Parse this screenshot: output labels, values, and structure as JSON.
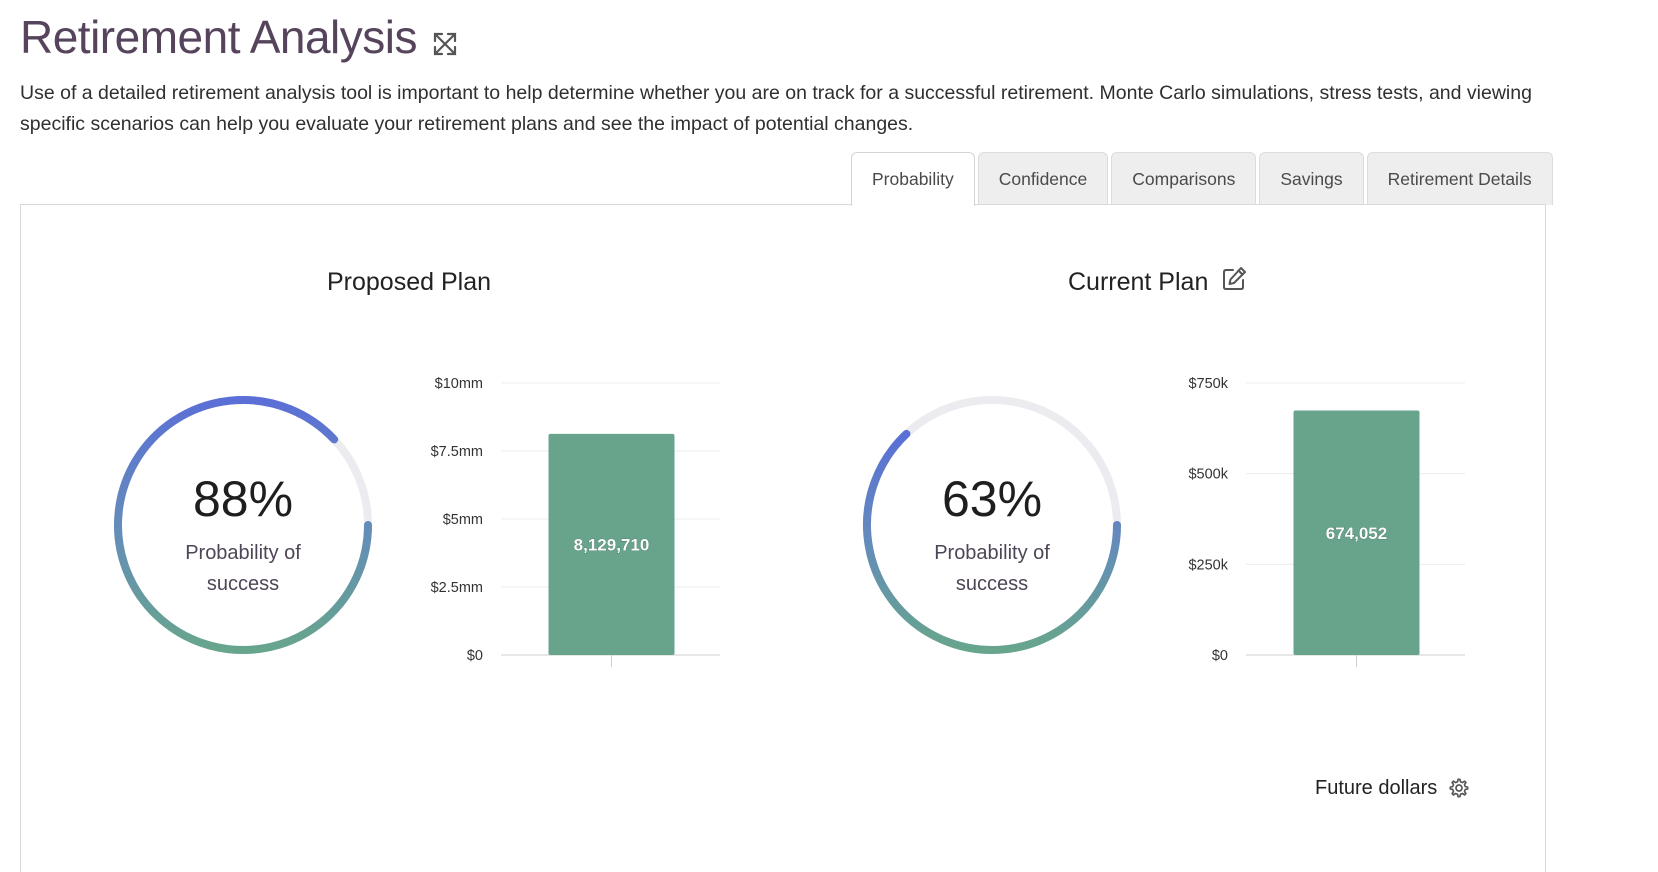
{
  "header": {
    "title": "Retirement Analysis",
    "intro": "Use of a detailed retirement analysis tool is important to help determine whether you are on track for a successful retirement. Monte Carlo simulations, stress tests, and viewing specific scenarios can help you evaluate your retirement plans and see the impact of potential changes."
  },
  "tabs": [
    {
      "label": "Probability",
      "active": true
    },
    {
      "label": "Confidence",
      "active": false
    },
    {
      "label": "Comparisons",
      "active": false
    },
    {
      "label": "Savings",
      "active": false
    },
    {
      "label": "Retirement Details",
      "active": false
    }
  ],
  "plans": {
    "proposed": {
      "title": "Proposed Plan",
      "probability_label": "88%",
      "probability_caption_line1": "Probability of",
      "probability_caption_line2": "success"
    },
    "current": {
      "title": "Current Plan",
      "probability_label": "63%",
      "probability_caption_line1": "Probability of",
      "probability_caption_line2": "success"
    }
  },
  "footer": {
    "dollars_label": "Future dollars"
  },
  "colors": {
    "bar": "#68a38b",
    "gauge_start": "#5b6fd6",
    "gauge_end": "#67a58c",
    "gauge_track": "#ececf0"
  },
  "icons": {
    "expand": "expand-icon",
    "edit": "edit-icon",
    "settings": "gear-icon"
  },
  "chart_data": [
    {
      "type": "bar",
      "categories": [
        ""
      ],
      "values": [
        8129710
      ],
      "data_labels": [
        "8,129,710"
      ],
      "ylim": [
        0,
        10000000
      ],
      "yticks": [
        "$0",
        "$2.5mm",
        "$5mm",
        "$7.5mm",
        "$10mm"
      ],
      "grid": true
    },
    {
      "type": "bar",
      "categories": [
        ""
      ],
      "values": [
        674052
      ],
      "data_labels": [
        "674,052"
      ],
      "ylim": [
        0,
        750000
      ],
      "yticks": [
        "$0",
        "$250k",
        "$500k",
        "$750k"
      ],
      "grid": true
    },
    {
      "type": "pie",
      "categories": [
        "Proposed Plan probability of success",
        "remaining"
      ],
      "values": [
        88,
        12
      ]
    },
    {
      "type": "pie",
      "categories": [
        "Current Plan probability of success",
        "remaining"
      ],
      "values": [
        63,
        37
      ]
    }
  ]
}
